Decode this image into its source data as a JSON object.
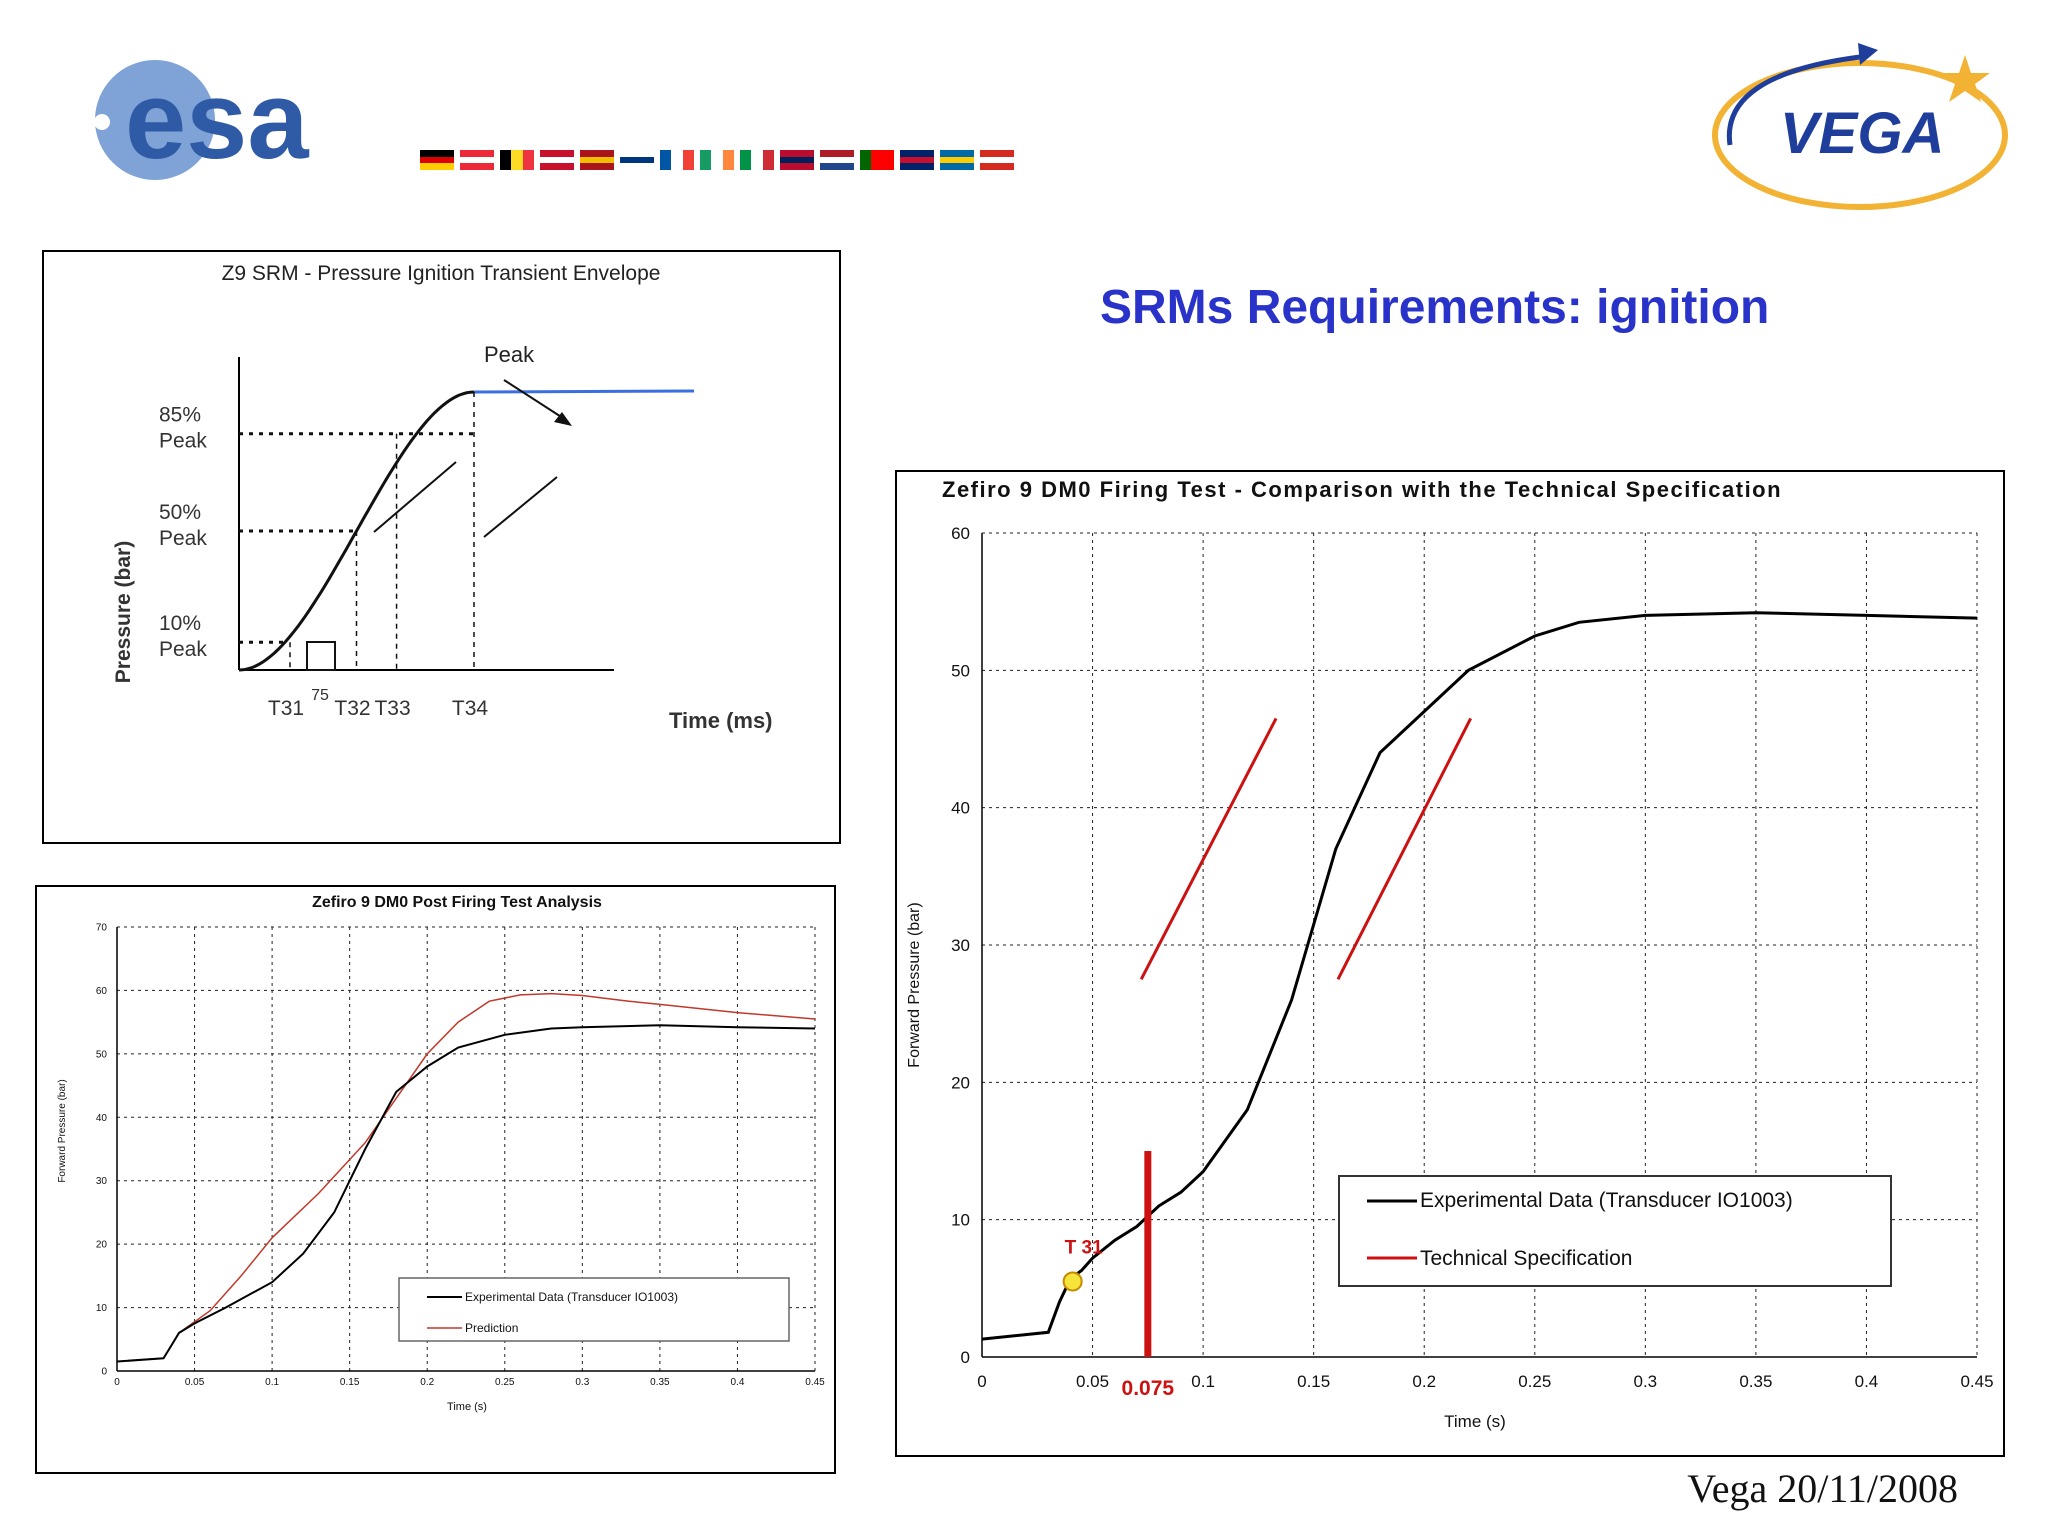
{
  "header": {
    "esa_logo_text": "esa",
    "vega_logo_text": "VEGA",
    "flags": [
      {
        "name": "germany",
        "colors": [
          "#000000",
          "#dd0000",
          "#ffce00"
        ],
        "dir": "h"
      },
      {
        "name": "austria",
        "colors": [
          "#ed2939",
          "#ffffff",
          "#ed2939"
        ],
        "dir": "h"
      },
      {
        "name": "belgium",
        "colors": [
          "#000000",
          "#fdda24",
          "#ef3340"
        ],
        "dir": "v"
      },
      {
        "name": "denmark",
        "colors": [
          "#c8102e",
          "#ffffff",
          "#c8102e"
        ],
        "dir": "h"
      },
      {
        "name": "spain",
        "colors": [
          "#aa151b",
          "#f1bf00",
          "#aa151b"
        ],
        "dir": "h"
      },
      {
        "name": "finland",
        "colors": [
          "#ffffff",
          "#003580",
          "#ffffff"
        ],
        "dir": "h"
      },
      {
        "name": "france",
        "colors": [
          "#0055a4",
          "#ffffff",
          "#ef4135"
        ],
        "dir": "v"
      },
      {
        "name": "ireland",
        "colors": [
          "#169b62",
          "#ffffff",
          "#ff883e"
        ],
        "dir": "v"
      },
      {
        "name": "italy",
        "colors": [
          "#009246",
          "#ffffff",
          "#ce2b37"
        ],
        "dir": "v"
      },
      {
        "name": "norway",
        "colors": [
          "#ba0c2f",
          "#00205b",
          "#ba0c2f"
        ],
        "dir": "h"
      },
      {
        "name": "netherlands",
        "colors": [
          "#ae1c28",
          "#ffffff",
          "#21468b"
        ],
        "dir": "h"
      },
      {
        "name": "portugal",
        "colors": [
          "#006600",
          "#ff0000",
          "#ff0000"
        ],
        "dir": "v"
      },
      {
        "name": "united-kingdom",
        "colors": [
          "#012169",
          "#c8102e",
          "#012169"
        ],
        "dir": "h"
      },
      {
        "name": "sweden",
        "colors": [
          "#006aa7",
          "#fecc00",
          "#006aa7"
        ],
        "dir": "h"
      },
      {
        "name": "switzerland",
        "colors": [
          "#d52b1e",
          "#ffffff",
          "#d52b1e"
        ],
        "dir": "h"
      }
    ]
  },
  "slide_title": "SRMs Requirements: ignition",
  "footer": "Vega 20/11/2008",
  "colors": {
    "title": "#2a33c9",
    "experimental": "#000000",
    "spec": "#cc1111",
    "prediction": "#c0392b",
    "envelope_tail": "#3b6fe0"
  },
  "chart_data": [
    {
      "type": "line",
      "title": "Z9 SRM - Pressure Ignition Transient Envelope",
      "xlabel": "Time (ms)",
      "ylabel": "Pressure (bar)",
      "y_levels": [
        {
          "label_1": "85%",
          "label_2": "Peak",
          "fraction": 0.85
        },
        {
          "label_1": "50%",
          "label_2": "Peak",
          "fraction": 0.5
        },
        {
          "label_1": "10%",
          "label_2": "Peak",
          "fraction": 0.1
        }
      ],
      "x_markers": [
        "T31",
        "T32",
        "T33",
        "T34"
      ],
      "box_label": "75",
      "annotation": "Peak"
    },
    {
      "type": "line",
      "title": "Zefiro 9 DM0 Post Firing Test Analysis",
      "xlabel": "Time (s)",
      "ylabel": "Forward Pressure (bar)",
      "xlim": [
        0,
        0.45
      ],
      "ylim": [
        0,
        70
      ],
      "xticks": [
        "0",
        "0.05",
        "0.1",
        "0.15",
        "0.2",
        "0.25",
        "0.3",
        "0.35",
        "0.4",
        "0.45"
      ],
      "yticks": [
        "0",
        "10",
        "20",
        "30",
        "40",
        "50",
        "60",
        "70"
      ],
      "grid": true,
      "legend_position": "bottom-right",
      "series": [
        {
          "name": "Experimental Data (Transducer IO1003)",
          "x": [
            0,
            0.03,
            0.035,
            0.04,
            0.05,
            0.07,
            0.1,
            0.12,
            0.14,
            0.16,
            0.18,
            0.2,
            0.22,
            0.25,
            0.28,
            0.3,
            0.35,
            0.4,
            0.45
          ],
          "y": [
            1.5,
            2,
            4,
            6,
            7.5,
            10,
            14,
            18.5,
            25,
            35,
            44,
            48,
            51,
            53,
            54,
            54.2,
            54.5,
            54.2,
            54
          ]
        },
        {
          "name": "Prediction",
          "x": [
            0,
            0.03,
            0.035,
            0.04,
            0.06,
            0.08,
            0.1,
            0.13,
            0.16,
            0.18,
            0.2,
            0.22,
            0.24,
            0.26,
            0.28,
            0.3,
            0.33,
            0.35,
            0.4,
            0.45
          ],
          "y": [
            1.5,
            2,
            4,
            6,
            9.5,
            15,
            21,
            28,
            36,
            43,
            50,
            55,
            58.3,
            59.3,
            59.5,
            59.2,
            58.3,
            57.8,
            56.5,
            55.5
          ]
        }
      ]
    },
    {
      "type": "line",
      "title": "Zefiro 9 DM0 Firing Test - Comparison with the Technical Specification",
      "xlabel": "Time (s)",
      "ylabel": "Forward Pressure (bar)",
      "xlim": [
        0,
        0.45
      ],
      "ylim": [
        0,
        60
      ],
      "xticks": [
        "0",
        "0.05",
        "0.1",
        "0.15",
        "0.2",
        "0.25",
        "0.3",
        "0.35",
        "0.4",
        "0.45"
      ],
      "yticks": [
        "0",
        "10",
        "20",
        "30",
        "40",
        "50",
        "60"
      ],
      "grid": true,
      "legend_position": "bottom-right",
      "t31_label": "T 31",
      "t31_point": {
        "x": 0.041,
        "y": 5.5
      },
      "vertical_marker": {
        "x": 0.075,
        "y_from": 0,
        "y_to": 15,
        "label": "0.075"
      },
      "series": [
        {
          "name": "Experimental Data (Transducer IO1003)",
          "x": [
            0,
            0.03,
            0.035,
            0.04,
            0.045,
            0.05,
            0.06,
            0.07,
            0.08,
            0.09,
            0.1,
            0.12,
            0.14,
            0.16,
            0.18,
            0.2,
            0.22,
            0.25,
            0.27,
            0.3,
            0.35,
            0.4,
            0.45
          ],
          "y": [
            1.3,
            1.8,
            4,
            5.7,
            6.3,
            7.2,
            8.5,
            9.5,
            11,
            12,
            13.5,
            18,
            26,
            37,
            44,
            47,
            50,
            52.5,
            53.5,
            54,
            54.2,
            54,
            53.8
          ]
        },
        {
          "name": "Technical Specification",
          "segments": [
            {
              "x": [
                0.072,
                0.133
              ],
              "y": [
                27.5,
                46.5
              ]
            },
            {
              "x": [
                0.161,
                0.221
              ],
              "y": [
                27.5,
                46.5
              ]
            }
          ]
        }
      ]
    }
  ]
}
